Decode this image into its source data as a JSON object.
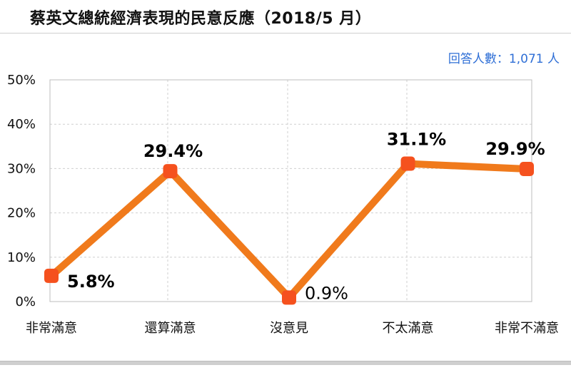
{
  "header": {
    "title": "蔡英文總統經濟表現的民意反應（2018/5 月）",
    "note": "回答人數：1,071 人"
  },
  "colors": {
    "line": "#f07a1c",
    "marker": "#f5511e",
    "grid": "#cfcfcf",
    "frame": "#bdbdbd",
    "note": "#2f6fd6"
  },
  "chart_data": {
    "type": "line",
    "title": "蔡英文總統經濟表現的民意反應（2018/5 月）",
    "categories": [
      "非常滿意",
      "還算滿意",
      "沒意見",
      "不太滿意",
      "非常不滿意"
    ],
    "series": [
      {
        "values": [
          5.8,
          29.4,
          0.9,
          31.1,
          29.9
        ]
      }
    ],
    "data_labels": [
      "5.8%",
      "29.4%",
      "0.9%",
      "31.1%",
      "29.9%"
    ],
    "yticks": [
      0,
      10,
      20,
      30,
      40,
      50
    ],
    "ytick_labels": [
      "0%",
      "10%",
      "20%",
      "30%",
      "40%",
      "50%"
    ],
    "ylim": [
      0,
      50
    ],
    "grid": true,
    "legend": "none",
    "xlabel": "",
    "ylabel": ""
  }
}
